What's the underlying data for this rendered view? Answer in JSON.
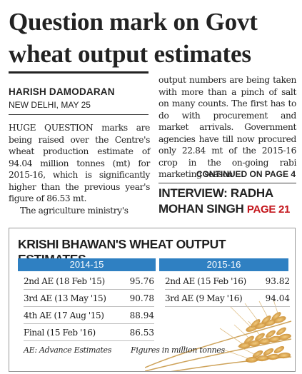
{
  "headline": {
    "line1": "Question mark on Govt",
    "line2": "wheat output estimates"
  },
  "byline": {
    "name": "HARISH DAMODARAN",
    "place": "NEW DELHI, MAY 25"
  },
  "article": {
    "left_p1": "HUGE QUESTION marks are being raised over the Centre's wheat production estimate of 94.04 million tonnes (mt) for 2015-16, which is significantly higher than the previous year's figure of 86.53 mt.",
    "left_p2": "The agriculture ministry's",
    "right_p1": "output numbers are being taken with more than a pinch of salt on many counts. The first has to do with procurement and market arrivals. Government agencies have till now procured only 22.84 mt of the 2015-16 crop in the on-going rabi marketing season",
    "continued": "CONTINUED ON PAGE 4"
  },
  "interview": {
    "line1": "INTERVIEW: RADHA",
    "line2": "MOHAN SINGH",
    "page": "PAGE 21"
  },
  "table_box": {
    "title": "KRISHI BHAWAN'S WHEAT OUTPUT ESTIMATES",
    "left": {
      "year": "2014-15",
      "rows": [
        {
          "label": "2nd AE (18 Feb '15)",
          "value": "95.76"
        },
        {
          "label": "3rd AE (13 May '15)",
          "value": "90.78"
        },
        {
          "label": "4th AE (17 Aug '15)",
          "value": "88.94"
        },
        {
          "label": "Final (15 Feb '16)",
          "value": "86.53"
        }
      ]
    },
    "right": {
      "year": "2015-16",
      "rows": [
        {
          "label": "2nd AE (15 Feb '16)",
          "value": "93.82"
        },
        {
          "label": "3rd AE (9 May '16)",
          "value": "94.04"
        }
      ]
    },
    "footnote_left": "AE: Advance Estimates",
    "footnote_right": "Figures in million tonnes"
  },
  "colors": {
    "header_blue": "#2f80c2",
    "accent_red": "#c4161c",
    "wheat_gold": "#d9a441"
  }
}
